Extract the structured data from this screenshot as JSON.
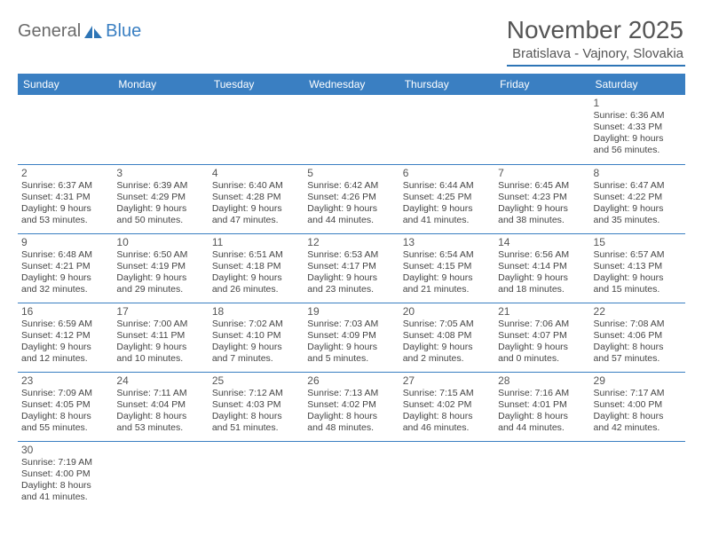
{
  "brand": {
    "text1": "General",
    "text2": "Blue"
  },
  "title": "November 2025",
  "location": "Bratislava - Vajnory, Slovakia",
  "colors": {
    "header_bg": "#3a7fc2",
    "header_text": "#ffffff",
    "rule": "#3a7fc2",
    "text": "#444444",
    "title_text": "#555555"
  },
  "day_names": [
    "Sunday",
    "Monday",
    "Tuesday",
    "Wednesday",
    "Thursday",
    "Friday",
    "Saturday"
  ],
  "weeks": [
    [
      null,
      null,
      null,
      null,
      null,
      null,
      {
        "n": "1",
        "sr": "6:36 AM",
        "ss": "4:33 PM",
        "dl1": "9 hours",
        "dl2": "and 56 minutes."
      }
    ],
    [
      {
        "n": "2",
        "sr": "6:37 AM",
        "ss": "4:31 PM",
        "dl1": "9 hours",
        "dl2": "and 53 minutes."
      },
      {
        "n": "3",
        "sr": "6:39 AM",
        "ss": "4:29 PM",
        "dl1": "9 hours",
        "dl2": "and 50 minutes."
      },
      {
        "n": "4",
        "sr": "6:40 AM",
        "ss": "4:28 PM",
        "dl1": "9 hours",
        "dl2": "and 47 minutes."
      },
      {
        "n": "5",
        "sr": "6:42 AM",
        "ss": "4:26 PM",
        "dl1": "9 hours",
        "dl2": "and 44 minutes."
      },
      {
        "n": "6",
        "sr": "6:44 AM",
        "ss": "4:25 PM",
        "dl1": "9 hours",
        "dl2": "and 41 minutes."
      },
      {
        "n": "7",
        "sr": "6:45 AM",
        "ss": "4:23 PM",
        "dl1": "9 hours",
        "dl2": "and 38 minutes."
      },
      {
        "n": "8",
        "sr": "6:47 AM",
        "ss": "4:22 PM",
        "dl1": "9 hours",
        "dl2": "and 35 minutes."
      }
    ],
    [
      {
        "n": "9",
        "sr": "6:48 AM",
        "ss": "4:21 PM",
        "dl1": "9 hours",
        "dl2": "and 32 minutes."
      },
      {
        "n": "10",
        "sr": "6:50 AM",
        "ss": "4:19 PM",
        "dl1": "9 hours",
        "dl2": "and 29 minutes."
      },
      {
        "n": "11",
        "sr": "6:51 AM",
        "ss": "4:18 PM",
        "dl1": "9 hours",
        "dl2": "and 26 minutes."
      },
      {
        "n": "12",
        "sr": "6:53 AM",
        "ss": "4:17 PM",
        "dl1": "9 hours",
        "dl2": "and 23 minutes."
      },
      {
        "n": "13",
        "sr": "6:54 AM",
        "ss": "4:15 PM",
        "dl1": "9 hours",
        "dl2": "and 21 minutes."
      },
      {
        "n": "14",
        "sr": "6:56 AM",
        "ss": "4:14 PM",
        "dl1": "9 hours",
        "dl2": "and 18 minutes."
      },
      {
        "n": "15",
        "sr": "6:57 AM",
        "ss": "4:13 PM",
        "dl1": "9 hours",
        "dl2": "and 15 minutes."
      }
    ],
    [
      {
        "n": "16",
        "sr": "6:59 AM",
        "ss": "4:12 PM",
        "dl1": "9 hours",
        "dl2": "and 12 minutes."
      },
      {
        "n": "17",
        "sr": "7:00 AM",
        "ss": "4:11 PM",
        "dl1": "9 hours",
        "dl2": "and 10 minutes."
      },
      {
        "n": "18",
        "sr": "7:02 AM",
        "ss": "4:10 PM",
        "dl1": "9 hours",
        "dl2": "and 7 minutes."
      },
      {
        "n": "19",
        "sr": "7:03 AM",
        "ss": "4:09 PM",
        "dl1": "9 hours",
        "dl2": "and 5 minutes."
      },
      {
        "n": "20",
        "sr": "7:05 AM",
        "ss": "4:08 PM",
        "dl1": "9 hours",
        "dl2": "and 2 minutes."
      },
      {
        "n": "21",
        "sr": "7:06 AM",
        "ss": "4:07 PM",
        "dl1": "9 hours",
        "dl2": "and 0 minutes."
      },
      {
        "n": "22",
        "sr": "7:08 AM",
        "ss": "4:06 PM",
        "dl1": "8 hours",
        "dl2": "and 57 minutes."
      }
    ],
    [
      {
        "n": "23",
        "sr": "7:09 AM",
        "ss": "4:05 PM",
        "dl1": "8 hours",
        "dl2": "and 55 minutes."
      },
      {
        "n": "24",
        "sr": "7:11 AM",
        "ss": "4:04 PM",
        "dl1": "8 hours",
        "dl2": "and 53 minutes."
      },
      {
        "n": "25",
        "sr": "7:12 AM",
        "ss": "4:03 PM",
        "dl1": "8 hours",
        "dl2": "and 51 minutes."
      },
      {
        "n": "26",
        "sr": "7:13 AM",
        "ss": "4:02 PM",
        "dl1": "8 hours",
        "dl2": "and 48 minutes."
      },
      {
        "n": "27",
        "sr": "7:15 AM",
        "ss": "4:02 PM",
        "dl1": "8 hours",
        "dl2": "and 46 minutes."
      },
      {
        "n": "28",
        "sr": "7:16 AM",
        "ss": "4:01 PM",
        "dl1": "8 hours",
        "dl2": "and 44 minutes."
      },
      {
        "n": "29",
        "sr": "7:17 AM",
        "ss": "4:00 PM",
        "dl1": "8 hours",
        "dl2": "and 42 minutes."
      }
    ],
    [
      {
        "n": "30",
        "sr": "7:19 AM",
        "ss": "4:00 PM",
        "dl1": "8 hours",
        "dl2": "and 41 minutes."
      },
      null,
      null,
      null,
      null,
      null,
      null
    ]
  ],
  "labels": {
    "sunrise": "Sunrise:",
    "sunset": "Sunset:",
    "daylight": "Daylight:"
  }
}
